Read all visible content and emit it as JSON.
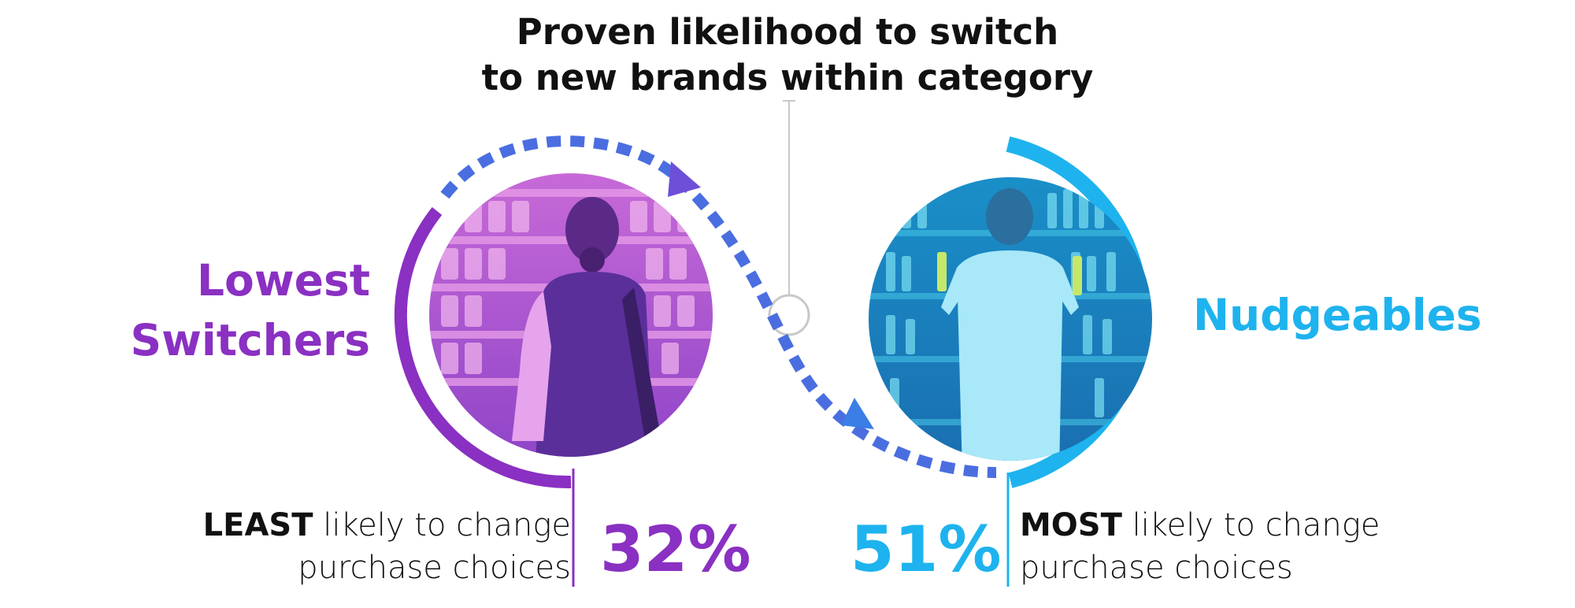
{
  "title": {
    "line1": "Proven likelihood to switch",
    "line2": "to new brands within category"
  },
  "segments": [
    {
      "id": "lowest-switchers",
      "label_line1": "Lowest",
      "label_line2": "Switchers",
      "emphasis": "LEAST",
      "desc_rest": " likely to change",
      "desc_line2": "purchase choices",
      "percent": "32%",
      "color": "#8a30c2",
      "photo": "woman-shopping-grocery-aisle"
    },
    {
      "id": "nudgeables",
      "label_line1": "Nudgeables",
      "emphasis": "MOST",
      "desc_rest": " likely to change",
      "desc_line2": "purchase choices",
      "percent": "51%",
      "color": "#1eb3ee",
      "photo": "man-choosing-bottles-shelf"
    }
  ],
  "colors": {
    "arrow": "#4a6ee0",
    "connector": "#c8c8c8"
  }
}
